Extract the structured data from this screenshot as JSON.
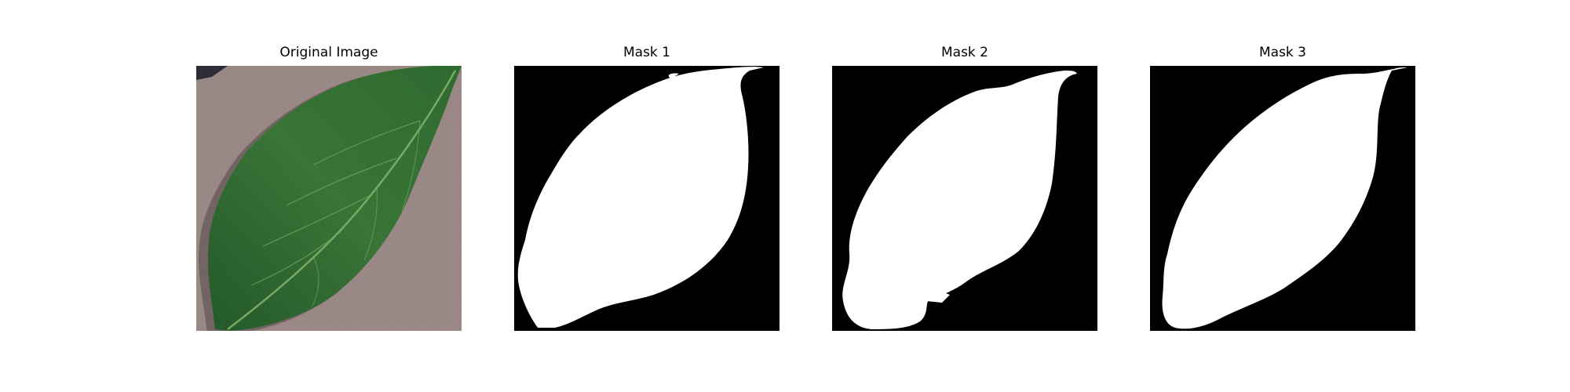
{
  "figure": {
    "panels": [
      {
        "title": "Original Image"
      },
      {
        "title": "Mask 1"
      },
      {
        "title": "Mask 2"
      },
      {
        "title": "Mask 3"
      }
    ]
  },
  "colors": {
    "background": "#ffffff",
    "mask_background": "#000000",
    "mask_foreground": "#ffffff",
    "leaf_dark": "#1f4a23",
    "leaf_mid": "#3f7a3b",
    "leaf_vein": "#8fbf72",
    "surface": "#a18f8d"
  }
}
